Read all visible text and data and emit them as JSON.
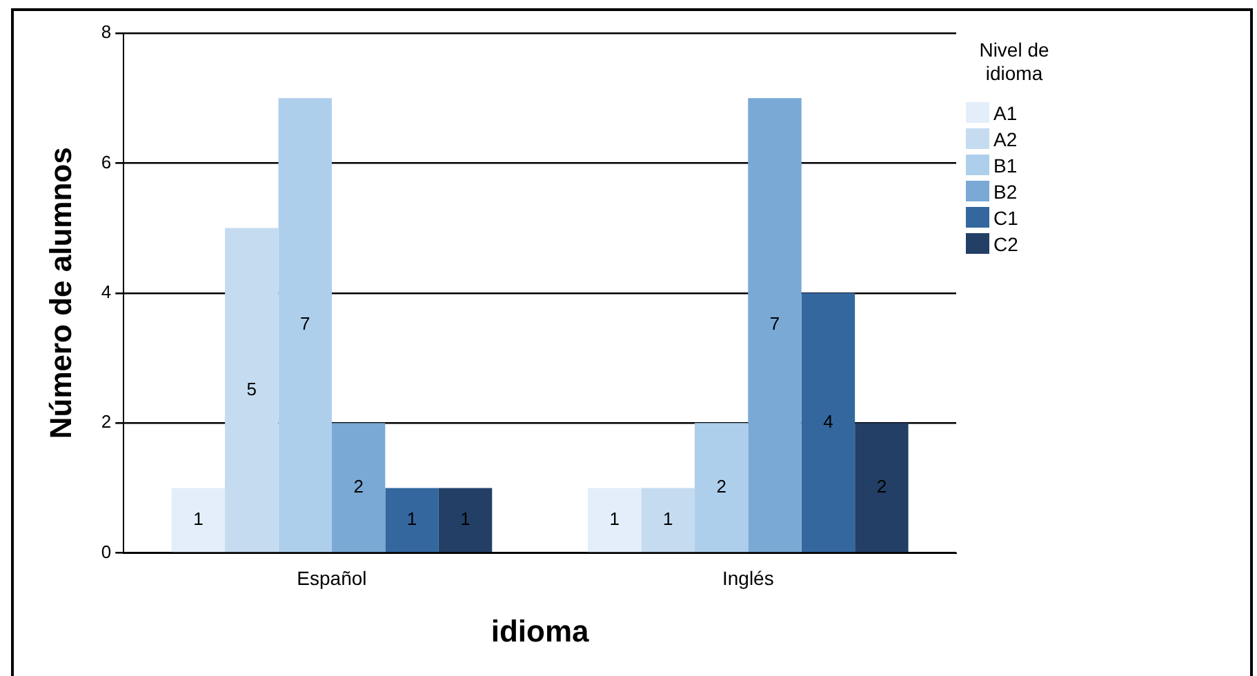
{
  "chart_data": {
    "type": "bar",
    "xlabel": "idioma",
    "ylabel": "Número de alumnos",
    "legend_title": "Nivel de idioma",
    "categories": [
      "Español",
      "Inglés"
    ],
    "series": [
      {
        "name": "A1",
        "color": "#e3eefa",
        "values": [
          1,
          1
        ]
      },
      {
        "name": "A2",
        "color": "#c5dbf0",
        "values": [
          5,
          1
        ]
      },
      {
        "name": "B1",
        "color": "#aecfec",
        "values": [
          7,
          2
        ]
      },
      {
        "name": "B2",
        "color": "#7aa9d6",
        "values": [
          2,
          7
        ]
      },
      {
        "name": "C1",
        "color": "#33679e",
        "values": [
          1,
          4
        ]
      },
      {
        "name": "C2",
        "color": "#233f66",
        "values": [
          1,
          2
        ]
      }
    ],
    "ylim": [
      0,
      8
    ],
    "yticks": [
      0,
      2,
      4,
      6,
      8
    ],
    "grid": "y",
    "legend": "right",
    "data_labels": true
  }
}
